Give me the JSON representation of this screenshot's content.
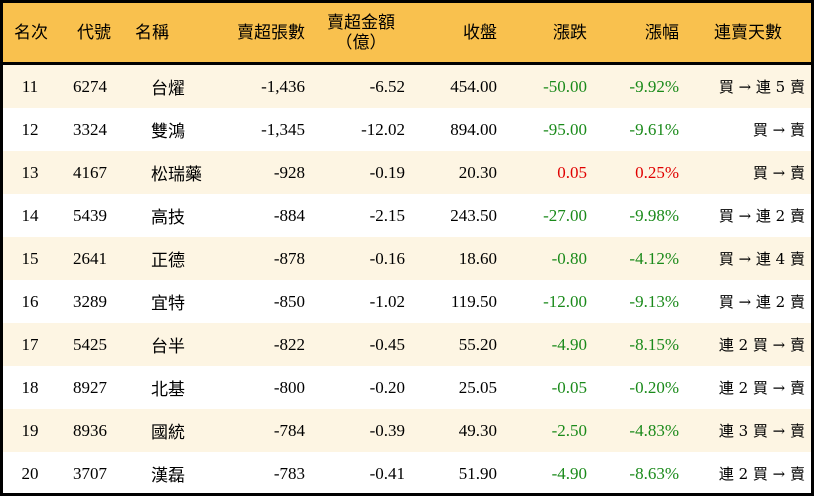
{
  "headers": [
    "名次",
    "代號",
    "名稱",
    "賣超張數",
    "賣超金額\n（億）",
    "收盤",
    "漲跌",
    "漲幅",
    "連賣天數"
  ],
  "colors": {
    "header_bg": "#f9c14e",
    "row_alt": "#fdf5e3",
    "down": "#1a8a1a",
    "up": "#e00000"
  },
  "rows": [
    {
      "rank": "11",
      "code": "6274",
      "name": "台燿",
      "shares": "-1,436",
      "amount": "-6.52",
      "close": "454.00",
      "change": "-50.00",
      "pct": "-9.92%",
      "streak": "買 → 連 5 賣",
      "dir": "down"
    },
    {
      "rank": "12",
      "code": "3324",
      "name": "雙鴻",
      "shares": "-1,345",
      "amount": "-12.02",
      "close": "894.00",
      "change": "-95.00",
      "pct": "-9.61%",
      "streak": "買 → 賣",
      "dir": "down"
    },
    {
      "rank": "13",
      "code": "4167",
      "name": "松瑞藥",
      "shares": "-928",
      "amount": "-0.19",
      "close": "20.30",
      "change": "0.05",
      "pct": "0.25%",
      "streak": "買 → 賣",
      "dir": "up"
    },
    {
      "rank": "14",
      "code": "5439",
      "name": "高技",
      "shares": "-884",
      "amount": "-2.15",
      "close": "243.50",
      "change": "-27.00",
      "pct": "-9.98%",
      "streak": "買 → 連 2 賣",
      "dir": "down"
    },
    {
      "rank": "15",
      "code": "2641",
      "name": "正德",
      "shares": "-878",
      "amount": "-0.16",
      "close": "18.60",
      "change": "-0.80",
      "pct": "-4.12%",
      "streak": "買 → 連 4 賣",
      "dir": "down"
    },
    {
      "rank": "16",
      "code": "3289",
      "name": "宜特",
      "shares": "-850",
      "amount": "-1.02",
      "close": "119.50",
      "change": "-12.00",
      "pct": "-9.13%",
      "streak": "買 → 連 2 賣",
      "dir": "down"
    },
    {
      "rank": "17",
      "code": "5425",
      "name": "台半",
      "shares": "-822",
      "amount": "-0.45",
      "close": "55.20",
      "change": "-4.90",
      "pct": "-8.15%",
      "streak": "連 2 買 → 賣",
      "dir": "down"
    },
    {
      "rank": "18",
      "code": "8927",
      "name": "北基",
      "shares": "-800",
      "amount": "-0.20",
      "close": "25.05",
      "change": "-0.05",
      "pct": "-0.20%",
      "streak": "連 2 買 → 賣",
      "dir": "down"
    },
    {
      "rank": "19",
      "code": "8936",
      "name": "國統",
      "shares": "-784",
      "amount": "-0.39",
      "close": "49.30",
      "change": "-2.50",
      "pct": "-4.83%",
      "streak": "連 3 買 → 賣",
      "dir": "down"
    },
    {
      "rank": "20",
      "code": "3707",
      "name": "漢磊",
      "shares": "-783",
      "amount": "-0.41",
      "close": "51.90",
      "change": "-4.90",
      "pct": "-8.63%",
      "streak": "連 2 買 → 賣",
      "dir": "down"
    }
  ]
}
